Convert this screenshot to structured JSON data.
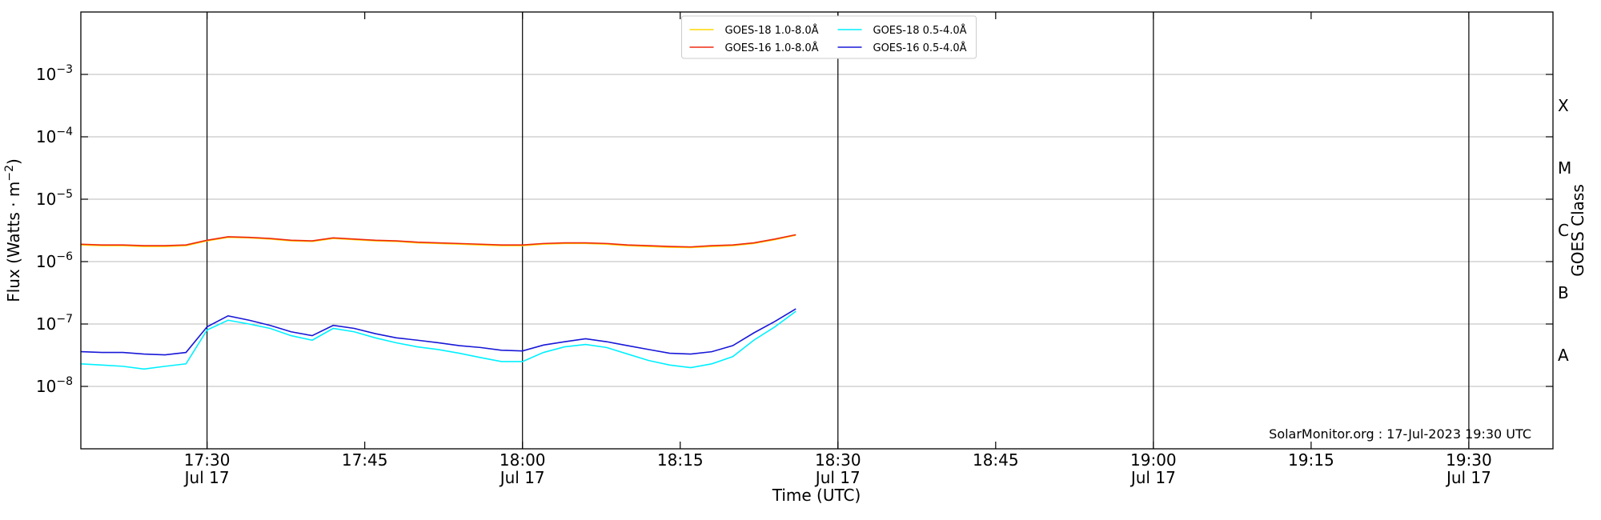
{
  "chart_data": {
    "type": "line",
    "ylabel": {
      "text": "Flux (Watts · m",
      "sup": "−2",
      "tail": ")"
    },
    "xlabel": "Time (UTC)",
    "y2label": "GOES Class",
    "annotation": "SolarMonitor.org : 17-Jul-2023 19:30 UTC",
    "log_y": true,
    "grid": true,
    "legend": "upper center",
    "xlim": [
      "17:18",
      "19:38"
    ],
    "ylim": [
      1e-09,
      0.01
    ],
    "xticks": [
      {
        "value": "17:30",
        "label": "17:30",
        "date": "Jul 17"
      },
      {
        "value": "17:45",
        "label": "17:45"
      },
      {
        "value": "18:00",
        "label": "18:00",
        "date": "Jul 17"
      },
      {
        "value": "18:15",
        "label": "18:15"
      },
      {
        "value": "18:30",
        "label": "18:30",
        "date": "Jul 17"
      },
      {
        "value": "18:45",
        "label": "18:45"
      },
      {
        "value": "19:00",
        "label": "19:00",
        "date": "Jul 17"
      },
      {
        "value": "19:15",
        "label": "19:15"
      },
      {
        "value": "19:30",
        "label": "19:30",
        "date": "Jul 17"
      }
    ],
    "yticks": [
      {
        "value": 1e-08,
        "label": "10",
        "exp": "−8"
      },
      {
        "value": 1e-07,
        "label": "10",
        "exp": "−7"
      },
      {
        "value": 1e-06,
        "label": "10",
        "exp": "−6"
      },
      {
        "value": 1e-05,
        "label": "10",
        "exp": "−5"
      },
      {
        "value": 0.0001,
        "label": "10",
        "exp": "−4"
      },
      {
        "value": 0.001,
        "label": "10",
        "exp": "−3"
      }
    ],
    "y2ticks": [
      {
        "value": 3.16e-08,
        "label": "A"
      },
      {
        "value": 3.16e-07,
        "label": "B"
      },
      {
        "value": 3.16e-06,
        "label": "C"
      },
      {
        "value": 3.16e-05,
        "label": "M"
      },
      {
        "value": 0.000316,
        "label": "X"
      }
    ],
    "x": [
      "17:18",
      "17:20",
      "17:22",
      "17:24",
      "17:26",
      "17:28",
      "17:30",
      "17:32",
      "17:34",
      "17:36",
      "17:38",
      "17:40",
      "17:42",
      "17:44",
      "17:46",
      "17:48",
      "17:50",
      "17:52",
      "17:54",
      "17:56",
      "17:58",
      "18:00",
      "18:02",
      "18:04",
      "18:06",
      "18:08",
      "18:10",
      "18:12",
      "18:14",
      "18:16",
      "18:18",
      "18:20",
      "18:22",
      "18:24",
      "18:26"
    ],
    "series": [
      {
        "name": "GOES-18 1.0-8.0Å",
        "color": "#ffd700",
        "values": [
          1.85e-06,
          1.8e-06,
          1.8e-06,
          1.75e-06,
          1.75e-06,
          1.8e-06,
          2.15e-06,
          2.45e-06,
          2.4e-06,
          2.3e-06,
          2.15e-06,
          2.1e-06,
          2.35e-06,
          2.25e-06,
          2.15e-06,
          2.1e-06,
          2e-06,
          1.95e-06,
          1.9e-06,
          1.85e-06,
          1.8e-06,
          1.8e-06,
          1.9e-06,
          1.95e-06,
          1.95e-06,
          1.9e-06,
          1.8e-06,
          1.75e-06,
          1.7e-06,
          1.68e-06,
          1.75e-06,
          1.8e-06,
          1.95e-06,
          2.25e-06,
          2.65e-06
        ]
      },
      {
        "name": "GOES-16 1.0-8.0Å",
        "color": "#ee2a10",
        "values": [
          1.9e-06,
          1.85e-06,
          1.85e-06,
          1.8e-06,
          1.8e-06,
          1.85e-06,
          2.2e-06,
          2.5e-06,
          2.45e-06,
          2.35e-06,
          2.2e-06,
          2.15e-06,
          2.4e-06,
          2.3e-06,
          2.2e-06,
          2.15e-06,
          2.05e-06,
          2e-06,
          1.95e-06,
          1.9e-06,
          1.85e-06,
          1.85e-06,
          1.95e-06,
          2e-06,
          2e-06,
          1.95e-06,
          1.85e-06,
          1.8e-06,
          1.75e-06,
          1.72e-06,
          1.8e-06,
          1.85e-06,
          2e-06,
          2.3e-06,
          2.7e-06
        ]
      },
      {
        "name": "GOES-18 0.5-4.0Å",
        "color": "#00f0ff",
        "values": [
          2.3e-08,
          2.2e-08,
          2.1e-08,
          1.9e-08,
          2.1e-08,
          2.3e-08,
          8e-08,
          1.15e-07,
          1e-07,
          8.5e-08,
          6.5e-08,
          5.5e-08,
          8.5e-08,
          7.5e-08,
          6e-08,
          5e-08,
          4.3e-08,
          3.9e-08,
          3.4e-08,
          2.9e-08,
          2.5e-08,
          2.5e-08,
          3.5e-08,
          4.3e-08,
          4.7e-08,
          4.2e-08,
          3.3e-08,
          2.6e-08,
          2.2e-08,
          2e-08,
          2.3e-08,
          3e-08,
          5.5e-08,
          9e-08,
          1.6e-07
        ]
      },
      {
        "name": "GOES-16 0.5-4.0Å",
        "color": "#1818d8",
        "values": [
          3.6e-08,
          3.5e-08,
          3.5e-08,
          3.3e-08,
          3.2e-08,
          3.5e-08,
          9e-08,
          1.35e-07,
          1.15e-07,
          9.5e-08,
          7.5e-08,
          6.5e-08,
          9.5e-08,
          8.5e-08,
          7e-08,
          6e-08,
          5.5e-08,
          5e-08,
          4.5e-08,
          4.2e-08,
          3.8e-08,
          3.7e-08,
          4.6e-08,
          5.2e-08,
          5.8e-08,
          5.2e-08,
          4.5e-08,
          3.9e-08,
          3.4e-08,
          3.3e-08,
          3.6e-08,
          4.5e-08,
          7.2e-08,
          1.1e-07,
          1.75e-07
        ]
      }
    ]
  }
}
